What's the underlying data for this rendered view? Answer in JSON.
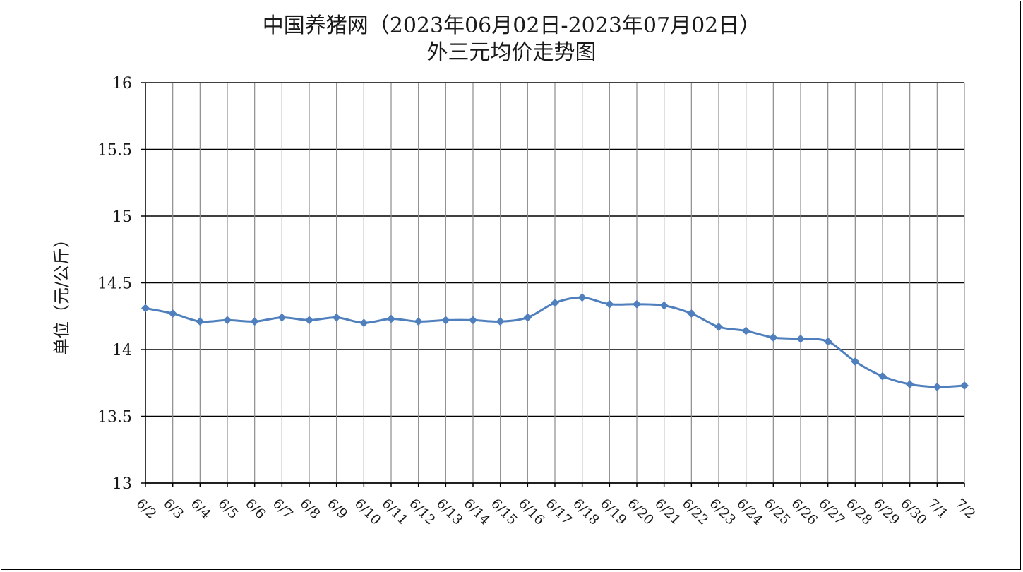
{
  "chart_data": {
    "type": "line",
    "title": "中国养猪网（2023年06月02日-2023年07月02日）",
    "subtitle": "外三元均价走势图",
    "xlabel": "",
    "ylabel": "单位（元/公斤）",
    "ylim": [
      13,
      16
    ],
    "yticks": [
      "13",
      "13.5",
      "14",
      "14.5",
      "15",
      "15.5",
      "16"
    ],
    "ytick_values": [
      13,
      13.5,
      14,
      14.5,
      15,
      15.5,
      16
    ],
    "grid": true,
    "legend": "none",
    "line_color": "#4f7fbd",
    "grid_color": "#000000",
    "vgrid_color": "#8c8c8c",
    "categories": [
      "6/2",
      "6/3",
      "6/4",
      "6/5",
      "6/6",
      "6/7",
      "6/8",
      "6/9",
      "6/10",
      "6/11",
      "6/12",
      "6/13",
      "6/14",
      "6/15",
      "6/16",
      "6/17",
      "6/18",
      "6/19",
      "6/20",
      "6/21",
      "6/22",
      "6/23",
      "6/24",
      "6/25",
      "6/26",
      "6/27",
      "6/28",
      "6/29",
      "6/30",
      "7/1",
      "7/2"
    ],
    "series": [
      {
        "values": [
          14.31,
          14.27,
          14.21,
          14.22,
          14.21,
          14.24,
          14.22,
          14.24,
          14.2,
          14.23,
          14.21,
          14.22,
          14.22,
          14.21,
          14.24,
          14.35,
          14.39,
          14.34,
          14.34,
          14.33,
          14.27,
          14.17,
          14.14,
          14.09,
          14.08,
          14.06,
          13.91,
          13.8,
          13.74,
          13.72,
          13.73
        ]
      }
    ]
  }
}
